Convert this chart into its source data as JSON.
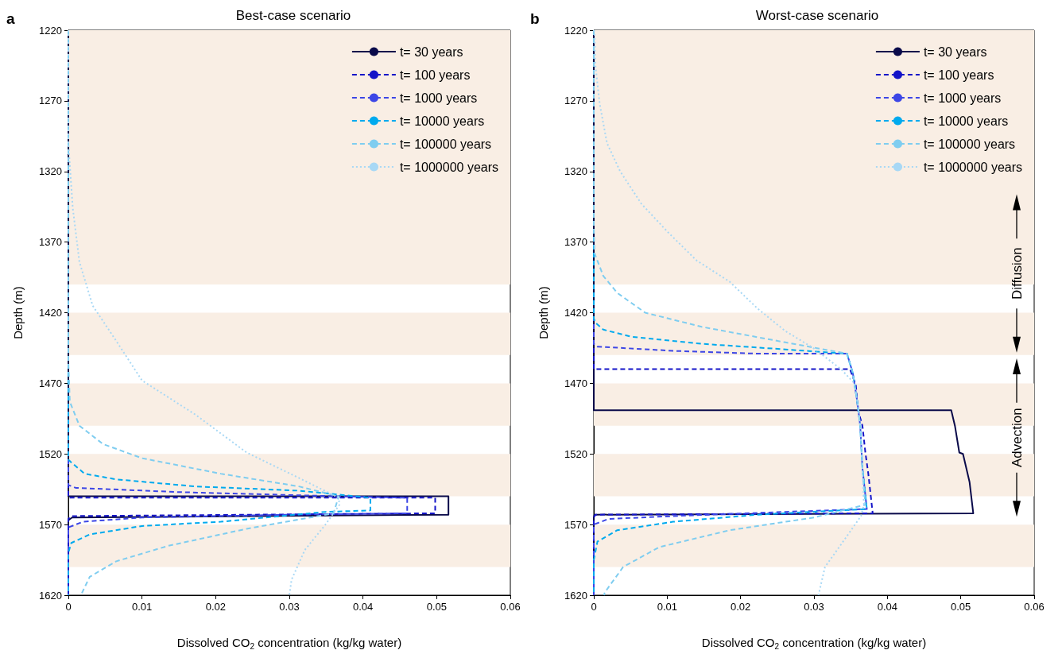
{
  "chart_data": [
    {
      "type": "line",
      "title": "Best-case scenario",
      "xlabel": "Dissolved CO$_{2}$ concentration (kg/kg water)",
      "ylabel": "Depth (m)",
      "xlim": [
        0,
        0.06
      ],
      "xticks": [
        0,
        0.01,
        0.02,
        0.03,
        0.04,
        0.05,
        0.06
      ],
      "ylim": [
        1620,
        1220
      ],
      "yticks": [
        1220,
        1270,
        1320,
        1370,
        1420,
        1470,
        1520,
        1570,
        1620
      ],
      "legend": "top right",
      "annotations": [
        "a"
      ],
      "bands": [
        {
          "axis": "y",
          "from": 1220,
          "to": 1400,
          "color": "#f9eee4"
        },
        {
          "axis": "y",
          "from": 1420,
          "to": 1450,
          "color": "#f9eee4"
        },
        {
          "axis": "y",
          "from": 1470,
          "to": 1500,
          "color": "#f9eee4"
        },
        {
          "axis": "y",
          "from": 1520,
          "to": 1550,
          "color": "#f9eee4"
        },
        {
          "axis": "y",
          "from": 1570,
          "to": 1600,
          "color": "#f9eee4"
        }
      ],
      "series": [
        {
          "name": "t= 30 years",
          "color": "#0a0a4a",
          "line_style": "solid",
          "x": [
            0,
            0,
            0.0516,
            0.0516,
            0.0005,
            0,
            0
          ],
          "values": [
            1220,
            1550,
            1550,
            1563,
            1565,
            1567,
            1620
          ]
        },
        {
          "name": "t= 100 years",
          "color": "#1414c8",
          "line_style": "dashed",
          "x": [
            0,
            0,
            0.0498,
            0.0498,
            0.0004,
            0,
            0
          ],
          "values": [
            1220,
            1551,
            1551,
            1562,
            1564,
            1566,
            1620
          ]
        },
        {
          "name": "t= 1000 years",
          "color": "#3c46e6",
          "line_style": "dashed",
          "x": [
            0,
            0,
            0.001,
            0.015,
            0.0367,
            0.046,
            0.046,
            0.03,
            0.01,
            0.002,
            0,
            0
          ],
          "values": [
            1220,
            1542,
            1544,
            1547,
            1550,
            1551,
            1562,
            1563,
            1565,
            1568,
            1572,
            1620
          ]
        },
        {
          "name": "t= 10000 years",
          "color": "#00aaee",
          "line_style": "dashed",
          "x": [
            0,
            0,
            0.0004,
            0.0022,
            0.0065,
            0.0172,
            0.0313,
            0.041,
            0.041,
            0.0349,
            0.0207,
            0.01,
            0.0029,
            0.0004,
            0,
            0
          ],
          "values": [
            1220,
            1524,
            1526,
            1534,
            1538,
            1543,
            1546,
            1551,
            1560,
            1561,
            1568,
            1571,
            1577,
            1583,
            1590,
            1620
          ]
        },
        {
          "name": "t= 100000 years",
          "color": "#7fcdf0",
          "line_style": "dashed",
          "x": [
            0,
            0,
            0.0002,
            0.0015,
            0.0047,
            0.01,
            0.0207,
            0.0313,
            0.0367,
            0.036,
            0.0242,
            0.0136,
            0.0065,
            0.0029,
            0.0017
          ],
          "values": [
            1220,
            1455,
            1483,
            1500,
            1513,
            1523,
            1534,
            1543,
            1550,
            1562,
            1573,
            1585,
            1596,
            1607,
            1620
          ]
        },
        {
          "name": "t= 1000000 years",
          "color": "#a8d8f5",
          "line_style": "dotted",
          "x": [
            0,
            0,
            0.0006,
            0.0015,
            0.0033,
            0.0065,
            0.01,
            0.0172,
            0.0242,
            0.0313,
            0.0367,
            0.0368,
            0.0349,
            0.0321,
            0.0303,
            0.03
          ],
          "values": [
            1220,
            1300,
            1346,
            1384,
            1415,
            1440,
            1468,
            1492,
            1519,
            1537,
            1551,
            1556,
            1570,
            1588,
            1609,
            1620
          ]
        }
      ]
    },
    {
      "type": "line",
      "title": "Worst-case scenario",
      "xlabel": "Dissolved CO$_{2}$ concentration (kg/kg water)",
      "ylabel": "Depth (m)",
      "xlim": [
        0,
        0.06
      ],
      "xticks": [
        0,
        0.01,
        0.02,
        0.03,
        0.04,
        0.05,
        0.06
      ],
      "ylim": [
        1620,
        1220
      ],
      "yticks": [
        1220,
        1270,
        1320,
        1370,
        1420,
        1470,
        1520,
        1570,
        1620
      ],
      "legend": "top right",
      "annotations": [
        "b",
        "Diffusion",
        "Advection"
      ],
      "bands": [
        {
          "axis": "y",
          "from": 1220,
          "to": 1400,
          "color": "#f9eee4"
        },
        {
          "axis": "y",
          "from": 1420,
          "to": 1450,
          "color": "#f9eee4"
        },
        {
          "axis": "y",
          "from": 1470,
          "to": 1500,
          "color": "#f9eee4"
        },
        {
          "axis": "y",
          "from": 1520,
          "to": 1550,
          "color": "#f9eee4"
        },
        {
          "axis": "y",
          "from": 1570,
          "to": 1600,
          "color": "#f9eee4"
        }
      ],
      "series": [
        {
          "name": "t= 30 years",
          "color": "#0a0a4a",
          "line_style": "solid",
          "x": [
            0,
            0,
            0.0487,
            0.0492,
            0.0498,
            0.0503,
            0.0512,
            0.0517,
            0.0001,
            0,
            0
          ],
          "values": [
            1220,
            1489,
            1489,
            1500,
            1519,
            1520,
            1540,
            1562,
            1563,
            1565,
            1620
          ]
        },
        {
          "name": "t= 100 years",
          "color": "#1414c8",
          "line_style": "dashed",
          "x": [
            0,
            0,
            0.0349,
            0.0357,
            0.036,
            0.0366,
            0.037,
            0.0374,
            0.038,
            0.0002,
            0,
            0
          ],
          "values": [
            1220,
            1460,
            1460,
            1471,
            1489,
            1500,
            1519,
            1534,
            1562,
            1563,
            1565,
            1620
          ]
        },
        {
          "name": "t= 1000 years",
          "color": "#3c46e6",
          "line_style": "dashed",
          "x": [
            0,
            0,
            0.0005,
            0.0108,
            0.0223,
            0.0345,
            0.0353,
            0.0359,
            0.0363,
            0.0366,
            0.0372,
            0.0261,
            0.0108,
            0.002,
            0,
            0
          ],
          "values": [
            1220,
            1442,
            1444,
            1447,
            1449,
            1449,
            1463,
            1483,
            1500,
            1530,
            1559,
            1561,
            1564,
            1566,
            1570,
            1620
          ]
        },
        {
          "name": "t= 10000 years",
          "color": "#00aaee",
          "line_style": "dashed",
          "x": [
            0,
            0,
            0.0002,
            0.0013,
            0.0051,
            0.0147,
            0.0261,
            0.0345,
            0.0353,
            0.0359,
            0.0363,
            0.0366,
            0.0372,
            0.0223,
            0.0108,
            0.0032,
            0.0005,
            0,
            0
          ],
          "values": [
            1220,
            1424,
            1427,
            1432,
            1437,
            1442,
            1446,
            1449,
            1463,
            1483,
            1500,
            1530,
            1559,
            1563,
            1568,
            1574,
            1582,
            1595,
            1620
          ]
        },
        {
          "name": "t= 100000 years",
          "color": "#7fcdf0",
          "line_style": "dashed",
          "x": [
            0,
            0,
            0.0001,
            0.0013,
            0.0032,
            0.007,
            0.0147,
            0.0261,
            0.0345,
            0.0353,
            0.0359,
            0.0363,
            0.0366,
            0.037,
            0.03,
            0.0185,
            0.0089,
            0.004,
            0.0015,
            0.0014
          ],
          "values": [
            1220,
            1360,
            1378,
            1394,
            1406,
            1420,
            1430,
            1441,
            1449,
            1463,
            1483,
            1500,
            1530,
            1556,
            1565,
            1574,
            1586,
            1600,
            1618,
            1620
          ]
        },
        {
          "name": "t= 1000000 years",
          "color": "#a8d8f5",
          "line_style": "dotted",
          "x": [
            0,
            0.0001,
            0.0002,
            0.0008,
            0.0018,
            0.0036,
            0.0065,
            0.0101,
            0.014,
            0.0185,
            0.0223,
            0.0261,
            0.0299,
            0.0337,
            0.0355,
            0.0359,
            0.0363,
            0.0366,
            0.0368,
            0.0364,
            0.0337,
            0.0315,
            0.0307,
            0.0306
          ],
          "values": [
            1220,
            1221,
            1244,
            1272,
            1300,
            1320,
            1343,
            1363,
            1383,
            1398,
            1417,
            1433,
            1445,
            1460,
            1470,
            1483,
            1500,
            1530,
            1556,
            1564,
            1584,
            1600,
            1618,
            1620
          ]
        }
      ]
    }
  ]
}
